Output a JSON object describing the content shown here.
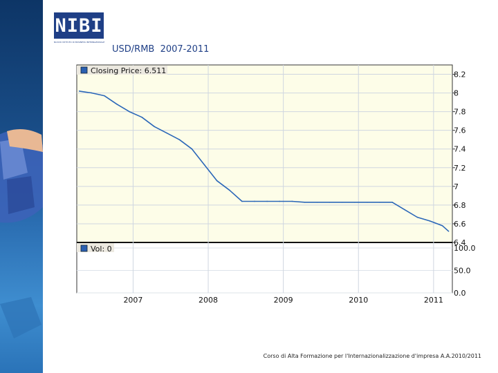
{
  "slide": {
    "title": "USD/RMB  2007-2011",
    "footer": "Corso di Alta Formazione per l'Internazionalizzazione d'impresa A.A.2010/2011"
  },
  "logo": {
    "text": "NIBI",
    "tagline": "NUOVO ISTITUTO DI BUSINESS INTERNAZIONALE"
  },
  "chart_data": {
    "type": "line",
    "price_legend": "Closing Price: 6.511",
    "volume_legend": "Vol: 0",
    "x_tick_labels": [
      "2007",
      "2008",
      "2009",
      "2010",
      "2011"
    ],
    "price_axis": {
      "ylim": [
        6.4,
        8.3
      ],
      "ticks": [
        "6.4",
        "6.6",
        "6.8",
        "7",
        "7.2",
        "7.4",
        "7.6",
        "7.8",
        "8",
        "8.2"
      ]
    },
    "volume_axis": {
      "ylim": [
        0,
        100
      ],
      "ticks": [
        "0.0",
        "50.0",
        "100.0"
      ]
    },
    "series": [
      {
        "x": [
          "2006-05",
          "2006-07",
          "2006-09",
          "2006-11",
          "2007-01",
          "2007-03",
          "2007-05",
          "2007-07",
          "2007-09",
          "2007-11",
          "2008-01",
          "2008-03",
          "2008-05",
          "2008-07",
          "2008-09",
          "2008-11",
          "2009-01",
          "2009-03",
          "2009-05",
          "2009-07",
          "2009-09",
          "2009-11",
          "2010-01",
          "2010-03",
          "2010-05",
          "2010-07",
          "2010-09",
          "2010-11",
          "2011-01",
          "2011-03",
          "2011-04"
        ],
        "values": [
          8.02,
          8.0,
          7.97,
          7.88,
          7.8,
          7.74,
          7.64,
          7.57,
          7.5,
          7.4,
          7.23,
          7.06,
          6.96,
          6.84,
          6.84,
          6.84,
          6.84,
          6.84,
          6.83,
          6.83,
          6.83,
          6.83,
          6.83,
          6.83,
          6.83,
          6.83,
          6.75,
          6.67,
          6.63,
          6.58,
          6.52
        ]
      }
    ],
    "volume": [
      0,
      0,
      0,
      0,
      0
    ],
    "grid": true,
    "legend_position": "top-left"
  }
}
